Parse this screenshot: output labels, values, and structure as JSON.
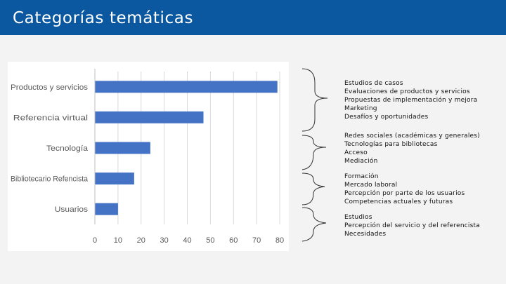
{
  "header": {
    "title": "Categorías temáticas"
  },
  "colors": {
    "header_bg": "#0b58a0",
    "bar": "#4472c4",
    "grid": "#d9d9d9"
  },
  "chart_data": {
    "type": "bar",
    "orientation": "horizontal",
    "categories": [
      "Productos y servicios",
      "Referencia virtual",
      "Tecnología",
      "Bibliotecario Refencista",
      "Usuarios"
    ],
    "values": [
      79,
      47,
      24,
      17,
      10
    ],
    "xlim": [
      0,
      80
    ],
    "xticks": [
      0,
      10,
      20,
      30,
      40,
      50,
      60,
      70,
      80
    ],
    "title": "",
    "xlabel": "",
    "ylabel": "",
    "grid": true,
    "legend": "none"
  },
  "topics": [
    {
      "items": [
        "Estudios de casos",
        "Evaluaciones de productos y servicios",
        "Propuestas de implementación y mejora",
        "Marketing",
        "Desafíos y oportunidades"
      ]
    },
    {
      "items": [
        "Redes sociales (académicas y generales)",
        "Tecnologías para bibliotecas",
        "Acceso",
        "Mediación"
      ]
    },
    {
      "items": [
        "Formación",
        "Mercado laboral",
        "Percepción por parte de los usuarios",
        "Competencias actuales y futuras"
      ]
    },
    {
      "items": [
        "Estudios",
        "Percepción del servicio y del referencista",
        "Necesidades"
      ]
    }
  ]
}
